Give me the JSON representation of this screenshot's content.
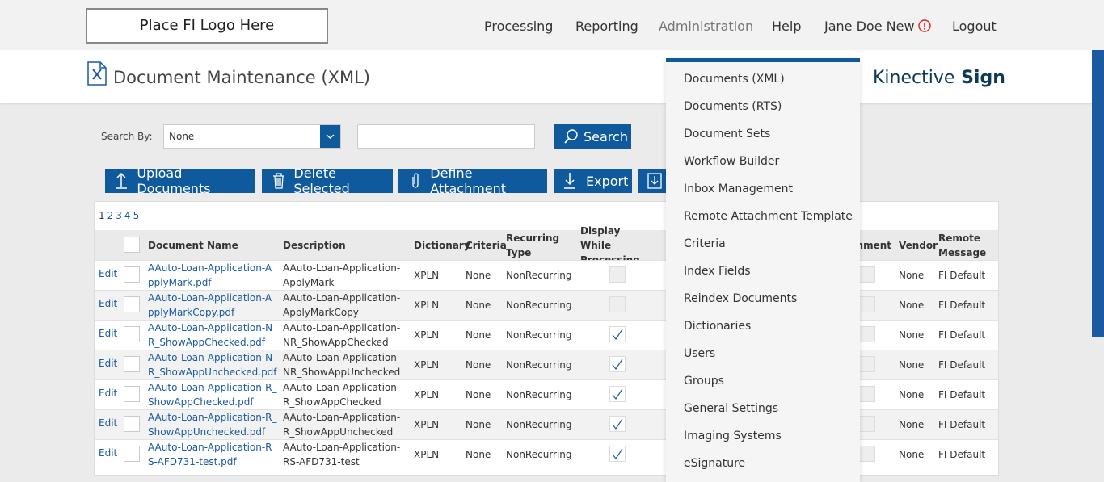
{
  "header": {
    "logo": "Place FI Logo Here",
    "nav": [
      "Processing",
      "Reporting",
      "Administration",
      "Help",
      "Jane Doe New",
      "Logout"
    ]
  },
  "page": {
    "title": "Document Maintenance (XML)",
    "brand": "Kinective",
    "brand_bold": "Sign"
  },
  "search": {
    "label": "Search By:",
    "selected": "None",
    "button": "Search"
  },
  "toolbar": [
    "Upload Documents",
    "Delete Selected",
    "Define Attachment",
    "Export"
  ],
  "pagination": [
    "1",
    "2",
    "3",
    "4",
    "5"
  ],
  "table": {
    "columns": [
      "Document Name",
      "Description",
      "Dictionary",
      "Criteria",
      "Recurring Type",
      "Display While Processing",
      "Attachment",
      "Vendor",
      "Remote Message"
    ],
    "rows": [
      {
        "action": "Edit",
        "name": "AAuto-Loan-Application-ApplyMark.pdf",
        "description": "AAuto-Loan-Application-ApplyMark",
        "dictionary": "XPLN",
        "criteria": "None",
        "recurring": "NonRecurring",
        "display": false,
        "vendor": "None",
        "remote": "FI Default"
      },
      {
        "action": "Edit",
        "name": "AAuto-Loan-Application-ApplyMarkCopy.pdf",
        "description": "AAuto-Loan-Application-ApplyMarkCopy",
        "dictionary": "XPLN",
        "criteria": "None",
        "recurring": "NonRecurring",
        "display": false,
        "vendor": "None",
        "remote": "FI Default"
      },
      {
        "action": "Edit",
        "name": "AAuto-Loan-Application-NR_ShowAppChecked.pdf",
        "description": "AAuto-Loan-Application-NR_ShowAppChecked",
        "dictionary": "XPLN",
        "criteria": "None",
        "recurring": "NonRecurring",
        "display": true,
        "vendor": "None",
        "remote": "FI Default"
      },
      {
        "action": "Edit",
        "name": "AAuto-Loan-Application-NR_ShowAppUnchecked.pdf",
        "description": "AAuto-Loan-Application-NR_ShowAppUnchecked",
        "dictionary": "XPLN",
        "criteria": "None",
        "recurring": "NonRecurring",
        "display": true,
        "vendor": "None",
        "remote": "FI Default"
      },
      {
        "action": "Edit",
        "name": "AAuto-Loan-Application-R_ShowAppChecked.pdf",
        "description": "AAuto-Loan-Application-R_ShowAppChecked",
        "dictionary": "XPLN",
        "criteria": "None",
        "recurring": "NonRecurring",
        "display": true,
        "vendor": "None",
        "remote": "FI Default"
      },
      {
        "action": "Edit",
        "name": "AAuto-Loan-Application-R_ShowAppUnchecked.pdf",
        "description": "AAuto-Loan-Application-R_ShowAppUnchecked",
        "dictionary": "XPLN",
        "criteria": "None",
        "recurring": "NonRecurring",
        "display": true,
        "vendor": "None",
        "remote": "FI Default"
      },
      {
        "action": "Edit",
        "name": "AAuto-Loan-Application-RS-AFD731-test.pdf",
        "description": "AAuto-Loan-Application-RS-AFD731-test",
        "dictionary": "XPLN",
        "criteria": "None",
        "recurring": "NonRecurring",
        "display": true,
        "vendor": "None",
        "remote": "FI Default"
      }
    ]
  },
  "menu": [
    "Documents (XML)",
    "Documents (RTS)",
    "Document Sets",
    "Workflow Builder",
    "Inbox Management",
    "Remote Attachment Template",
    "Criteria",
    "Index Fields",
    "Reindex Documents",
    "Dictionaries",
    "Users",
    "Groups",
    "General Settings",
    "Imaging Systems",
    "eSignature"
  ]
}
